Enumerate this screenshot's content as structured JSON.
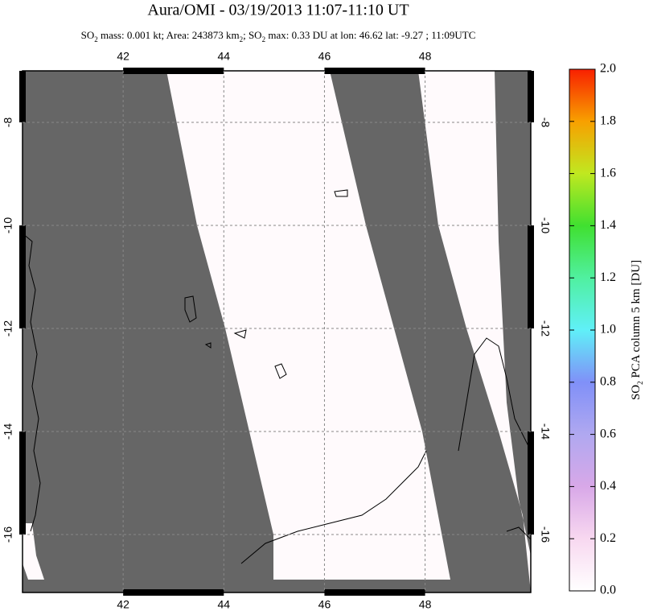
{
  "chart_data": {
    "type": "map",
    "title": "Aura/OMI - 03/19/2013 11:07-11:10 UT",
    "subtitle_parts": [
      "SO",
      "2",
      " mass: 0.001 kt; Area: 243873 km",
      "2",
      "; SO",
      "2",
      " max: 0.33 DU at lon: 46.62 lat: -9.27 ; 11:09UTC"
    ],
    "xlim": [
      40,
      50.1
    ],
    "ylim": [
      -17.125,
      -7
    ],
    "xticks": [
      42,
      44,
      46,
      48
    ],
    "yticks": [
      -8,
      -10,
      -12,
      -14,
      -16
    ],
    "grid": true,
    "colorbar": {
      "label_parts": [
        "SO",
        "2",
        " PCA column 5 km [DU]"
      ],
      "lim": [
        0,
        2
      ],
      "ticks": [
        {
          "value": 0,
          "label": "0.0"
        },
        {
          "value": 0.2,
          "label": "0.2"
        },
        {
          "value": 0.4,
          "label": "0.4"
        },
        {
          "value": 0.6,
          "label": "0.6"
        },
        {
          "value": 0.8,
          "label": "0.8"
        },
        {
          "value": 1,
          "label": "1.0"
        },
        {
          "value": 1.2,
          "label": "1.2"
        },
        {
          "value": 1.4,
          "label": "1.4"
        },
        {
          "value": 1.6,
          "label": "1.6"
        },
        {
          "value": 1.8,
          "label": "1.8"
        },
        {
          "value": 2,
          "label": "2.0"
        }
      ]
    }
  }
}
